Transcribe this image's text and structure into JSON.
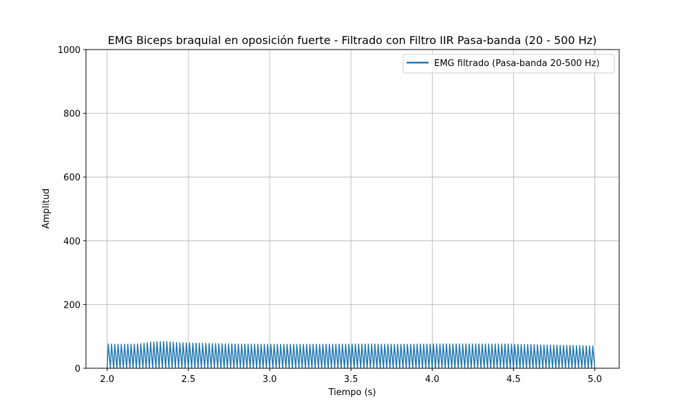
{
  "chart_data": {
    "type": "line",
    "title": "EMG Biceps braquial en oposición fuerte - Filtrado con Filtro IIR Pasa-banda (20 - 500 Hz)",
    "xlabel": "Tiempo (s)",
    "ylabel": "Amplitud",
    "xlim": [
      1.87,
      5.15
    ],
    "ylim": [
      0,
      1000
    ],
    "xticks": [
      2.0,
      2.5,
      3.0,
      3.5,
      4.0,
      4.5,
      5.0
    ],
    "xtick_labels": [
      "2.0",
      "2.5",
      "3.0",
      "3.5",
      "4.0",
      "4.5",
      "5.0"
    ],
    "yticks": [
      0,
      200,
      400,
      600,
      800,
      1000
    ],
    "ytick_labels": [
      "0",
      "200",
      "400",
      "600",
      "800",
      "1000"
    ],
    "grid": true,
    "legend_position": "top-right",
    "series": [
      {
        "name": "EMG filtrado (Pasa-banda 20-500 Hz)",
        "color": "#1f77b4",
        "x_start": 2.0,
        "x_end": 5.0,
        "oscillation_period_s": 0.02,
        "trough_value": 0,
        "peak_envelope": [
          {
            "x": 2.0,
            "y": 76
          },
          {
            "x": 2.1,
            "y": 75
          },
          {
            "x": 2.2,
            "y": 76
          },
          {
            "x": 2.27,
            "y": 82
          },
          {
            "x": 2.35,
            "y": 84
          },
          {
            "x": 2.45,
            "y": 80
          },
          {
            "x": 2.6,
            "y": 78
          },
          {
            "x": 2.8,
            "y": 76
          },
          {
            "x": 3.0,
            "y": 75
          },
          {
            "x": 3.3,
            "y": 75
          },
          {
            "x": 3.6,
            "y": 76
          },
          {
            "x": 3.8,
            "y": 75
          },
          {
            "x": 4.0,
            "y": 76
          },
          {
            "x": 4.2,
            "y": 76
          },
          {
            "x": 4.45,
            "y": 76
          },
          {
            "x": 4.7,
            "y": 73
          },
          {
            "x": 4.9,
            "y": 71
          },
          {
            "x": 5.0,
            "y": 70
          }
        ]
      }
    ]
  }
}
